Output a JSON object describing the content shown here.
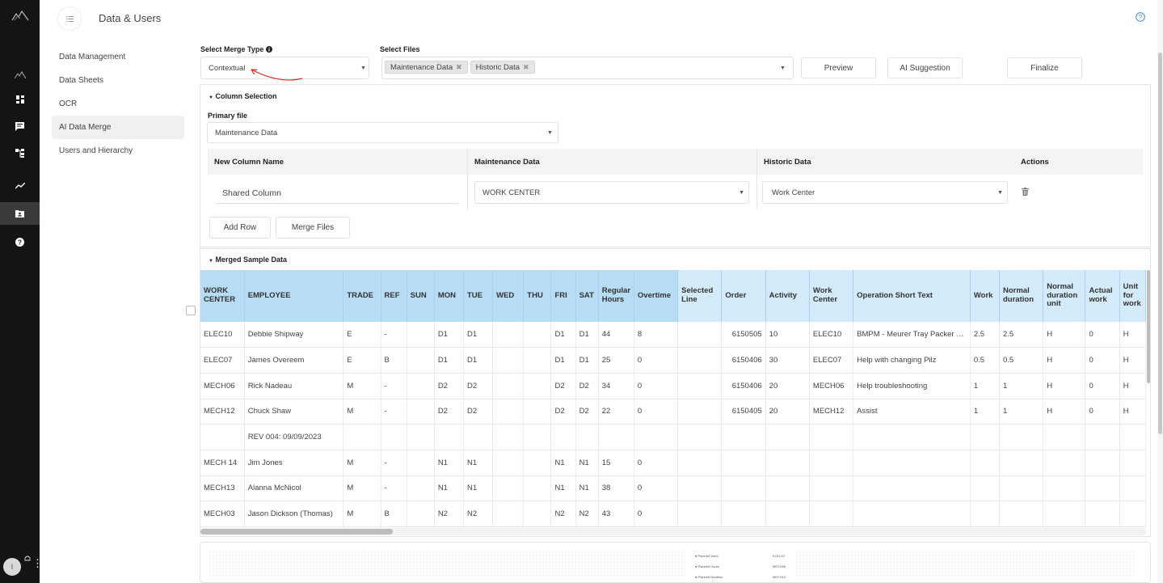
{
  "app": {
    "title": "Data & Users",
    "help_icon": "question-circle-icon"
  },
  "rail": {
    "icons": [
      "mountain-logo-icon",
      "mountain-icon",
      "dashboard-icon",
      "comment-icon",
      "hierarchy-icon",
      "trend-icon",
      "folder-user-icon",
      "question-icon"
    ],
    "avatar_initial": "I"
  },
  "sidebar": {
    "items": [
      {
        "label": "Data Management"
      },
      {
        "label": "Data Sheets"
      },
      {
        "label": "OCR"
      },
      {
        "label": "AI Data Merge",
        "active": true
      },
      {
        "label": "Users and Hierarchy"
      }
    ]
  },
  "merge": {
    "type_label": "Select Merge Type",
    "type_value": "Contextual",
    "files_label": "Select Files",
    "files": [
      "Maintenance Data",
      "Historic Data"
    ],
    "preview_label": "Preview",
    "ai_suggestion_label": "AI Suggestion",
    "finalize_label": "Finalize"
  },
  "column_selection": {
    "title": "Column Selection",
    "primary_label": "Primary file",
    "primary_value": "Maintenance Data",
    "headers": {
      "new_col": "New Column Name",
      "file1": "Maintenance Data",
      "file2": "Historic Data",
      "actions": "Actions"
    },
    "row": {
      "new_col": "Shared Column",
      "file1": "WORK CENTER",
      "file2": "Work Center"
    },
    "add_row_label": "Add Row",
    "merge_files_label": "Merge Files"
  },
  "merged": {
    "title": "Merged Sample Data",
    "columns": [
      "WORK CENTER",
      "EMPLOYEE",
      "TRADE",
      "REF",
      "SUN",
      "MON",
      "TUE",
      "WED",
      "THU",
      "FRI",
      "SAT",
      "Regular Hours",
      "Overtime",
      "Selected Line",
      "Order",
      "Activity",
      "Work Center",
      "Operation Short Text",
      "Work",
      "Normal duration",
      "Normal duration unit",
      "Actual work",
      "Unit for work"
    ],
    "rows": [
      [
        "ELEC10",
        "Debbie Shipway",
        "E",
        "-",
        "",
        "D1",
        "D1",
        "",
        "",
        "D1",
        "D1",
        "44",
        "8",
        "",
        "6150505",
        "10",
        "ELEC10",
        "BMPM - Meurer Tray Packer Maintenance",
        "2.5",
        "2.5",
        "H",
        "0",
        "H"
      ],
      [
        "ELEC07",
        "James Overeem",
        "E",
        "B",
        "",
        "D1",
        "D1",
        "",
        "",
        "D1",
        "D1",
        "25",
        "0",
        "",
        "6150406",
        "30",
        "ELEC07",
        "Help with changing Pilz",
        "0.5",
        "0.5",
        "H",
        "0",
        "H"
      ],
      [
        "MECH06",
        "Rick Nadeau",
        "M",
        "-",
        "",
        "D2",
        "D2",
        "",
        "",
        "D2",
        "D2",
        "34",
        "0",
        "",
        "6150406",
        "20",
        "MECH06",
        "Help troubleshooting",
        "1",
        "1",
        "H",
        "0",
        "H"
      ],
      [
        "MECH12",
        "Chuck Shaw",
        "M",
        "-",
        "",
        "D2",
        "D2",
        "",
        "",
        "D2",
        "D2",
        "22",
        "0",
        "",
        "6150405",
        "20",
        "MECH12",
        "Assist",
        "1",
        "1",
        "H",
        "0",
        "H"
      ],
      [
        "",
        "REV 004: 09/09/2023",
        "",
        "",
        "",
        "",
        "",
        "",
        "",
        "",
        "",
        "",
        "",
        "",
        "",
        "",
        "",
        "",
        "",
        "",
        "",
        "",
        ""
      ],
      [
        "MECH 14",
        "Jim Jones",
        "M",
        "-",
        "",
        "N1",
        "N1",
        "",
        "",
        "N1",
        "N1",
        "15",
        "0",
        "",
        "",
        "",
        "",
        "",
        "",
        "",
        "",
        "",
        ""
      ],
      [
        "MECH13",
        "Alanna McNicol",
        "M",
        "-",
        "",
        "N1",
        "N1",
        "",
        "",
        "N1",
        "N1",
        "38",
        "0",
        "",
        "",
        "",
        "",
        "",
        "",
        "",
        "",
        "",
        ""
      ],
      [
        "MECH03",
        "Jason Dickson (Thomas)",
        "M",
        "B",
        "",
        "N2",
        "N2",
        "",
        "",
        "N2",
        "N2",
        "43",
        "0",
        "",
        "",
        "",
        "",
        "",
        "",
        "",
        "",
        "",
        ""
      ]
    ]
  },
  "bottom_legend": [
    "Planned Work",
    "Planned Hours",
    "Planned Duration"
  ],
  "bottom_legend_values": [
    "ELEC10",
    "MECH06",
    "MECH12"
  ]
}
